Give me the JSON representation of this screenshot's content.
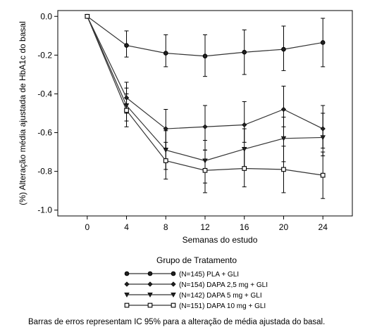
{
  "chart_data": {
    "type": "line",
    "xlabel": "Semanas do estudo",
    "ylabel": "(%) Alteração média ajustada de HbA1c do basal",
    "x": [
      0,
      4,
      8,
      12,
      16,
      20,
      24
    ],
    "xticks": [
      "0",
      "4",
      "8",
      "12",
      "16",
      "20",
      "24"
    ],
    "yticks": [
      "0.0",
      "-0.2",
      "-0.4",
      "-0.6",
      "-0.8",
      "-1.0"
    ],
    "xlim": [
      -3,
      27
    ],
    "ylim": [
      -1.03,
      0.03
    ],
    "grid": false,
    "legend_title": "Grupo de Tratamento",
    "legend_position": "bottom",
    "series": [
      {
        "name": "(N=145) PLA + GLI",
        "marker": "circle",
        "values": [
          0.0,
          -0.15,
          -0.19,
          -0.205,
          -0.185,
          -0.17,
          -0.135
        ],
        "lower": [
          0.0,
          -0.21,
          -0.26,
          -0.31,
          -0.3,
          -0.28,
          -0.26
        ],
        "upper": [
          0.0,
          -0.075,
          -0.095,
          -0.095,
          -0.07,
          -0.05,
          -0.01
        ]
      },
      {
        "name": "(N=154) DAPA 2,5 mg + GLI",
        "marker": "diamond",
        "values": [
          0.0,
          -0.42,
          -0.58,
          -0.57,
          -0.56,
          -0.48,
          -0.58
        ],
        "lower": [
          0.0,
          -0.5,
          -0.68,
          -0.69,
          -0.65,
          -0.57,
          -0.68
        ],
        "upper": [
          0.0,
          -0.34,
          -0.48,
          -0.46,
          -0.44,
          -0.36,
          -0.46
        ]
      },
      {
        "name": "(N=142) DAPA 5 mg + GLI",
        "marker": "triangle-down",
        "values": [
          0.0,
          -0.46,
          -0.69,
          -0.745,
          -0.685,
          -0.63,
          -0.625
        ],
        "lower": [
          0.0,
          -0.54,
          -0.79,
          -0.86,
          -0.79,
          -0.75,
          -0.72
        ],
        "upper": [
          0.0,
          -0.37,
          -0.59,
          -0.64,
          -0.58,
          -0.52,
          -0.5
        ]
      },
      {
        "name": "(N=151) DAPA 10 mg + GLI",
        "marker": "square",
        "values": [
          0.0,
          -0.485,
          -0.745,
          -0.795,
          -0.785,
          -0.79,
          -0.82
        ],
        "lower": [
          0.0,
          -0.57,
          -0.84,
          -0.91,
          -0.88,
          -0.91,
          -0.94
        ],
        "upper": [
          0.0,
          -0.4,
          -0.65,
          -0.69,
          -0.68,
          -0.67,
          -0.7
        ]
      }
    ]
  },
  "caption": "Barras de erros representam IC 95% para a alteração de média ajustada do basal."
}
